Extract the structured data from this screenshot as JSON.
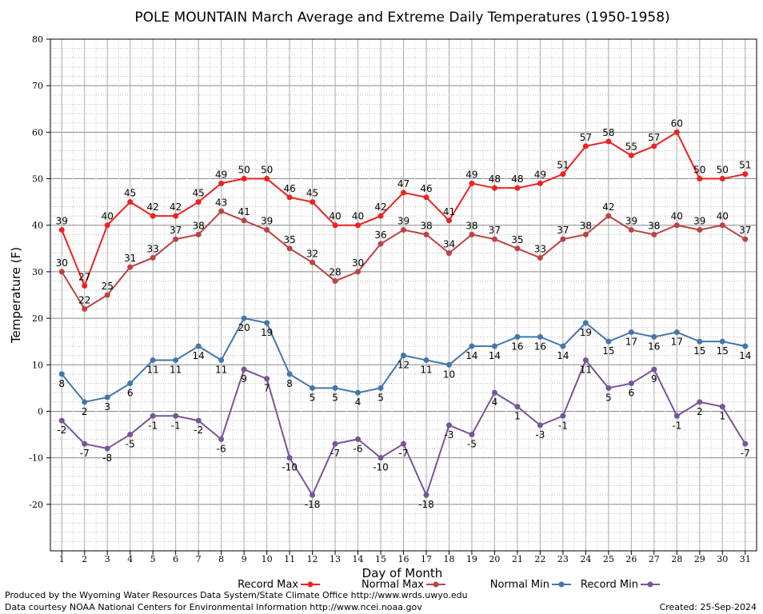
{
  "chart_data": {
    "type": "line",
    "title": "POLE MOUNTAIN March Average and Extreme Daily Temperatures (1950-1958)",
    "xlabel": "Day of Month",
    "ylabel": "Temperature (F)",
    "ylim": [
      -30,
      80
    ],
    "yticks": [
      -20,
      -10,
      0,
      10,
      20,
      30,
      40,
      50,
      60,
      70,
      80
    ],
    "x": [
      1,
      2,
      3,
      4,
      5,
      6,
      7,
      8,
      9,
      10,
      11,
      12,
      13,
      14,
      15,
      16,
      17,
      18,
      19,
      20,
      21,
      22,
      23,
      24,
      25,
      26,
      27,
      28,
      29,
      30,
      31
    ],
    "grid": true,
    "legend_position": "bottom",
    "series": [
      {
        "name": "Record Max",
        "color": "#ee2222",
        "label_pos": "above",
        "values": [
          39,
          27,
          40,
          45,
          42,
          42,
          45,
          49,
          50,
          50,
          46,
          45,
          40,
          40,
          42,
          47,
          46,
          41,
          49,
          48,
          48,
          49,
          51,
          57,
          58,
          55,
          57,
          60,
          50,
          50,
          51
        ]
      },
      {
        "name": "Normal Max",
        "color": "#bb4444",
        "label_pos": "above",
        "values": [
          30,
          22,
          25,
          31,
          33,
          37,
          38,
          43,
          41,
          39,
          35,
          32,
          28,
          30,
          36,
          39,
          38,
          34,
          38,
          37,
          35,
          33,
          37,
          38,
          42,
          39,
          38,
          40,
          39,
          40,
          37
        ]
      },
      {
        "name": "Normal Min",
        "color": "#4477aa",
        "label_pos": "below",
        "values": [
          8,
          2,
          3,
          6,
          11,
          11,
          14,
          11,
          20,
          19,
          8,
          5,
          5,
          4,
          5,
          12,
          11,
          10,
          14,
          14,
          16,
          16,
          14,
          19,
          15,
          17,
          16,
          17,
          15,
          15,
          14
        ]
      },
      {
        "name": "Record Min",
        "color": "#775599",
        "label_pos": "below",
        "values": [
          -2,
          -7,
          -8,
          -5,
          -1,
          -1,
          -2,
          -6,
          9,
          7,
          -10,
          -18,
          -7,
          -6,
          -10,
          -7,
          -18,
          -3,
          -5,
          4,
          1,
          -3,
          -1,
          11,
          5,
          6,
          9,
          -1,
          2,
          1,
          -7
        ]
      }
    ]
  },
  "footer": {
    "produced_by": "Produced by the Wyoming Water Resources Data System/State Climate Office http://www.wrds.uwyo.edu",
    "data_courtesy": "Data courtesy NOAA National Centers for Environmental Information http://www.ncei.noaa.gov",
    "created": "Created:  25-Sep-2024"
  }
}
